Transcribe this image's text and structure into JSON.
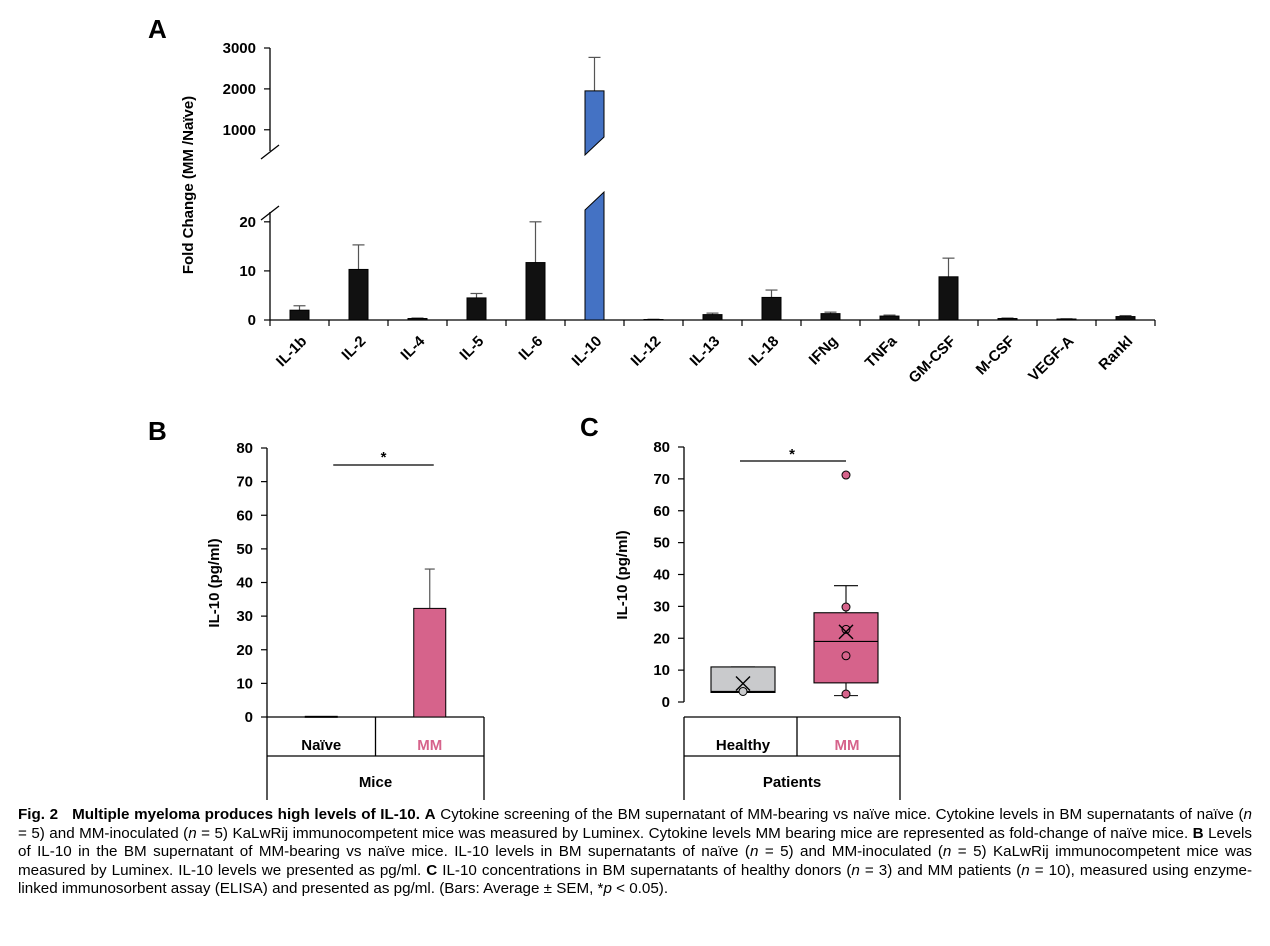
{
  "chart_data": [
    {
      "panel": "A",
      "type": "bar",
      "ylabel": "Fold Change (MM /Naïve)",
      "categories": [
        "IL-1b",
        "IL-2",
        "IL-4",
        "IL-5",
        "IL-6",
        "IL-10",
        "IL-12",
        "IL-13",
        "IL-18",
        "IFNg",
        "TNFa",
        "GM-CSF",
        "M-CSF",
        "VEGF-A",
        "Rankl"
      ],
      "values": [
        2,
        10.3,
        0.3,
        4.5,
        11.7,
        1950,
        0.1,
        1.1,
        4.6,
        1.3,
        0.8,
        8.8,
        0.3,
        0.2,
        0.7
      ],
      "errors": [
        0.9,
        5.0,
        0.1,
        0.9,
        8.3,
        820,
        0.05,
        0.3,
        1.5,
        0.3,
        0.2,
        3.8,
        0.1,
        0.05,
        0.2
      ],
      "highlight_category": "IL-10",
      "bar_color": "#111111",
      "highlight_color": "#4472c4",
      "y_upper_ticks": [
        1000,
        2000,
        3000
      ],
      "y_lower_ticks": [
        0,
        10,
        20
      ],
      "y_axis_break": [
        22,
        750
      ],
      "ylim_lower": [
        0,
        22
      ],
      "ylim_upper": [
        750,
        3000
      ]
    },
    {
      "panel": "B",
      "type": "bar",
      "ylabel": "IL-10 (pg/ml)",
      "group_label": "Mice",
      "categories": [
        "Naïve",
        "MM"
      ],
      "values": [
        0.2,
        32.3
      ],
      "errors": [
        0,
        11.7
      ],
      "colors": [
        "#111111",
        "#d6638b"
      ],
      "label_colors": [
        "#000000",
        "#d6638b"
      ],
      "ylim": [
        0,
        80
      ],
      "y_ticks": [
        0,
        10,
        20,
        30,
        40,
        50,
        60,
        70,
        80
      ],
      "significance": "*"
    },
    {
      "panel": "C",
      "type": "box",
      "ylabel": "IL-10 (pg/ml)",
      "group_label": "Patients",
      "categories": [
        "Healthy",
        "MM"
      ],
      "ylim": [
        0,
        80
      ],
      "y_ticks": [
        0,
        10,
        20,
        30,
        40,
        50,
        60,
        70,
        80
      ],
      "significance": "*",
      "boxes": [
        {
          "name": "Healthy",
          "q1": 3,
          "median": 3.3,
          "q3": 11,
          "whisker_low": 3,
          "whisker_high": 11,
          "mean": 5.8,
          "points": [
            3.3
          ],
          "color": "#c9cacc",
          "label_color": "#000000"
        },
        {
          "name": "MM",
          "q1": 6,
          "median": 19,
          "q3": 28,
          "whisker_low": 2,
          "whisker_high": 36.5,
          "mean": 22,
          "points": [
            71.2,
            29.8,
            22.8,
            14.5,
            2.5
          ],
          "color": "#d6638b",
          "label_color": "#d6638b"
        }
      ]
    }
  ],
  "panel_letters": [
    "A",
    "B",
    "C"
  ],
  "caption": {
    "label": "Fig. 2",
    "title": "Multiple myeloma produces high levels of IL-10.",
    "parts": [
      {
        "t": " "
      },
      {
        "t": "A",
        "b": true
      },
      {
        "t": " Cytokine screening of the BM supernatant of MM-bearing vs naïve mice. Cytokine levels in BM supernatants of naïve ("
      },
      {
        "t": "n",
        "i": true
      },
      {
        "t": " = 5) and MM-inoculated ("
      },
      {
        "t": "n",
        "i": true
      },
      {
        "t": " = 5) KaLwRij immunocompetent mice was measured by Luminex. Cytokine levels MM bearing mice are represented as fold-change of naïve mice. "
      },
      {
        "t": "B",
        "b": true
      },
      {
        "t": " Levels of IL-10 in the BM supernatant of MM-bearing vs naïve mice. IL-10 levels in BM supernatants of naïve ("
      },
      {
        "t": "n",
        "i": true
      },
      {
        "t": " = 5) and MM-inoculated ("
      },
      {
        "t": "n",
        "i": true
      },
      {
        "t": " = 5) KaLwRij immunocompetent mice was measured by Luminex. IL-10 levels we presented as pg/ml. "
      },
      {
        "t": "C",
        "b": true
      },
      {
        "t": " IL-10 concentrations in BM supernatants of healthy donors ("
      },
      {
        "t": "n",
        "i": true
      },
      {
        "t": " = 3) and MM patients ("
      },
      {
        "t": "n",
        "i": true
      },
      {
        "t": " = 10), measured using enzyme-linked immunosorbent assay (ELISA) and presented as pg/ml. (Bars: Average ± SEM, *"
      },
      {
        "t": "p",
        "i": true
      },
      {
        "t": " < 0.05)."
      }
    ]
  }
}
